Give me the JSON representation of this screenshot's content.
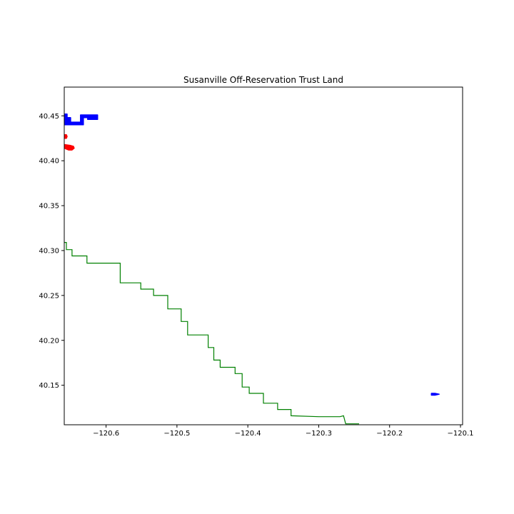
{
  "chart_data": {
    "type": "map",
    "title": "Susanville Off-Reservation Trust Land",
    "xlabel": "",
    "ylabel": "",
    "xlim": [
      -120.659,
      -120.097
    ],
    "ylim": [
      40.106,
      40.482
    ],
    "grid": false,
    "x_ticks": [
      -120.6,
      -120.5,
      -120.4,
      -120.3,
      -120.2,
      -120.1
    ],
    "x_tick_labels": [
      "−120.6",
      "−120.5",
      "−120.4",
      "−120.3",
      "−120.2",
      "−120.1"
    ],
    "y_ticks": [
      40.15,
      40.2,
      40.25,
      40.3,
      40.35,
      40.4,
      40.45
    ],
    "y_tick_labels": [
      "40.15",
      "40.20",
      "40.25",
      "40.30",
      "40.35",
      "40.40",
      "40.45"
    ],
    "series": [
      {
        "kind": "filled-polygons",
        "color": "#0000ff",
        "polygons": [
          [
            [
              -120.659,
              40.452
            ],
            [
              -120.655,
              40.452
            ],
            [
              -120.655,
              40.448
            ],
            [
              -120.65,
              40.448
            ],
            [
              -120.65,
              40.443
            ],
            [
              -120.636,
              40.443
            ],
            [
              -120.636,
              40.451
            ],
            [
              -120.612,
              40.451
            ],
            [
              -120.612,
              40.446
            ],
            [
              -120.626,
              40.446
            ],
            [
              -120.626,
              40.448
            ],
            [
              -120.632,
              40.448
            ],
            [
              -120.632,
              40.44
            ],
            [
              -120.659,
              40.44
            ]
          ],
          [
            [
              -120.141,
              40.141
            ],
            [
              -120.136,
              40.141
            ],
            [
              -120.13,
              40.14
            ],
            [
              -120.136,
              40.139
            ],
            [
              -120.141,
              40.139
            ]
          ]
        ]
      },
      {
        "kind": "filled-polygons",
        "color": "#ff0000",
        "polygons": [
          [
            [
              -120.659,
              40.429
            ],
            [
              -120.656,
              40.429
            ],
            [
              -120.655,
              40.427
            ],
            [
              -120.656,
              40.425
            ],
            [
              -120.659,
              40.425
            ]
          ],
          [
            [
              -120.659,
              40.418
            ],
            [
              -120.65,
              40.417
            ],
            [
              -120.646,
              40.416
            ],
            [
              -120.645,
              40.414
            ],
            [
              -120.648,
              40.412
            ],
            [
              -120.653,
              40.412
            ],
            [
              -120.659,
              40.414
            ]
          ]
        ]
      },
      {
        "kind": "line",
        "color": "#008000",
        "points": [
          [
            -120.659,
            40.309
          ],
          [
            -120.656,
            40.309
          ],
          [
            -120.656,
            40.301
          ],
          [
            -120.648,
            40.301
          ],
          [
            -120.648,
            40.294
          ],
          [
            -120.627,
            40.294
          ],
          [
            -120.627,
            40.286
          ],
          [
            -120.58,
            40.286
          ],
          [
            -120.58,
            40.264
          ],
          [
            -120.551,
            40.264
          ],
          [
            -120.551,
            40.257
          ],
          [
            -120.533,
            40.257
          ],
          [
            -120.533,
            40.25
          ],
          [
            -120.513,
            40.25
          ],
          [
            -120.513,
            40.235
          ],
          [
            -120.494,
            40.235
          ],
          [
            -120.494,
            40.221
          ],
          [
            -120.485,
            40.221
          ],
          [
            -120.485,
            40.206
          ],
          [
            -120.456,
            40.206
          ],
          [
            -120.456,
            40.192
          ],
          [
            -120.448,
            40.192
          ],
          [
            -120.448,
            40.178
          ],
          [
            -120.439,
            40.178
          ],
          [
            -120.439,
            40.17
          ],
          [
            -120.418,
            40.17
          ],
          [
            -120.418,
            40.163
          ],
          [
            -120.408,
            40.163
          ],
          [
            -120.408,
            40.148
          ],
          [
            -120.398,
            40.148
          ],
          [
            -120.398,
            40.141
          ],
          [
            -120.378,
            40.141
          ],
          [
            -120.378,
            40.13
          ],
          [
            -120.358,
            40.13
          ],
          [
            -120.358,
            40.123
          ],
          [
            -120.339,
            40.123
          ],
          [
            -120.339,
            40.116
          ],
          [
            -120.3,
            40.115
          ],
          [
            -120.27,
            40.115
          ],
          [
            -120.265,
            40.116
          ],
          [
            -120.262,
            40.107
          ],
          [
            -120.243,
            40.107
          ]
        ]
      }
    ]
  }
}
